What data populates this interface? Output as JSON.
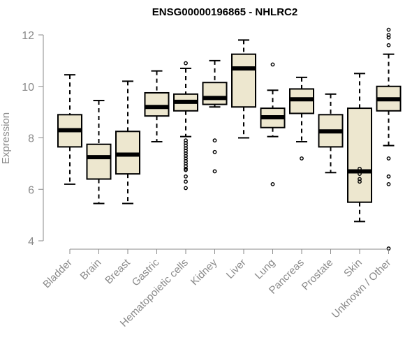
{
  "chart_data": {
    "type": "boxplot",
    "title": "ENSG00000196865 - NHLRC2",
    "xlabel": "",
    "ylabel": "Expression",
    "ylim": [
      3.7,
      12.3
    ],
    "yticks": [
      4,
      6,
      8,
      10,
      12
    ],
    "box_color": "#ede7cf",
    "categories": [
      {
        "name": "Bladder",
        "whisker_low": 6.2,
        "q1": 7.65,
        "median": 8.3,
        "q3": 8.9,
        "whisker_high": 10.45,
        "outliers": []
      },
      {
        "name": "Brain",
        "whisker_low": 5.45,
        "q1": 6.4,
        "median": 7.25,
        "q3": 7.75,
        "whisker_high": 9.45,
        "outliers": []
      },
      {
        "name": "Breast",
        "whisker_low": 5.45,
        "q1": 6.6,
        "median": 7.35,
        "q3": 8.25,
        "whisker_high": 10.2,
        "outliers": []
      },
      {
        "name": "Gastric",
        "whisker_low": 7.85,
        "q1": 8.85,
        "median": 9.2,
        "q3": 9.75,
        "whisker_high": 10.6,
        "outliers": []
      },
      {
        "name": "Hematopoietic cells",
        "whisker_low": 8.05,
        "q1": 9.05,
        "median": 9.4,
        "q3": 9.7,
        "whisker_high": 10.7,
        "outliers": [
          10.9,
          7.9,
          7.8,
          7.7,
          7.6,
          7.5,
          7.4,
          7.3,
          7.2,
          7.1,
          7.0,
          6.9,
          6.8,
          6.75,
          6.5,
          6.3,
          6.05
        ]
      },
      {
        "name": "Kidney",
        "whisker_low": 9.2,
        "q1": 9.3,
        "median": 9.55,
        "q3": 10.15,
        "whisker_high": 11.0,
        "outliers": [
          7.9,
          7.45,
          6.7
        ]
      },
      {
        "name": "Liver",
        "whisker_low": 8.0,
        "q1": 9.2,
        "median": 10.7,
        "q3": 11.25,
        "whisker_high": 11.8,
        "outliers": []
      },
      {
        "name": "Lung",
        "whisker_low": 8.05,
        "q1": 8.4,
        "median": 8.8,
        "q3": 9.15,
        "whisker_high": 9.85,
        "outliers": [
          10.85,
          6.2
        ]
      },
      {
        "name": "Pancreas",
        "whisker_low": 7.85,
        "q1": 8.95,
        "median": 9.5,
        "q3": 9.9,
        "whisker_high": 10.35,
        "outliers": [
          7.2
        ]
      },
      {
        "name": "Prostate",
        "whisker_low": 6.65,
        "q1": 7.65,
        "median": 8.25,
        "q3": 8.9,
        "whisker_high": 9.7,
        "outliers": []
      },
      {
        "name": "Skin",
        "whisker_low": 4.75,
        "q1": 5.5,
        "median": 6.7,
        "q3": 9.15,
        "whisker_high": 10.5,
        "outliers": [
          6.8,
          6.7,
          6.6,
          6.4,
          6.3
        ]
      },
      {
        "name": "Unknown / Other",
        "whisker_low": 7.7,
        "q1": 9.05,
        "median": 9.5,
        "q3": 10.0,
        "whisker_high": 11.25,
        "outliers": [
          12.2,
          12.0,
          11.9,
          11.6,
          7.2,
          6.5,
          6.2,
          3.7
        ]
      }
    ]
  }
}
